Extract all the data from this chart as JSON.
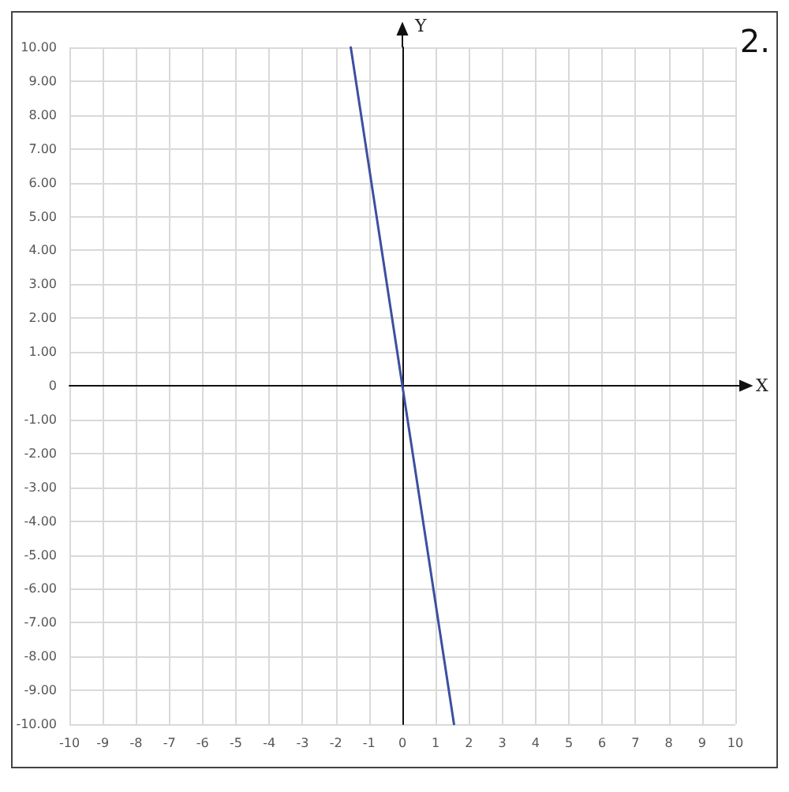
{
  "chart_data": {
    "type": "line",
    "xlabel": "X",
    "ylabel": "Y",
    "annotations": [
      "2."
    ],
    "x": [
      -1.55,
      1.55
    ],
    "series": [
      {
        "color": "#3d4f9f",
        "values": [
          10,
          -10
        ]
      }
    ],
    "xlim": [
      -10,
      10
    ],
    "ylim": [
      -10,
      10
    ],
    "xticks": [
      -10,
      -9,
      -8,
      -7,
      -6,
      -5,
      -4,
      -3,
      -2,
      -1,
      0,
      1,
      2,
      3,
      4,
      5,
      6,
      7,
      8,
      9,
      10
    ],
    "yticks": [
      {
        "value": -10,
        "label": "-10.00"
      },
      {
        "value": -9,
        "label": "-9.00"
      },
      {
        "value": -8,
        "label": "-8.00"
      },
      {
        "value": -7,
        "label": "-7.00"
      },
      {
        "value": -6,
        "label": "-6.00"
      },
      {
        "value": -5,
        "label": "-5.00"
      },
      {
        "value": -4,
        "label": "-4.00"
      },
      {
        "value": -3,
        "label": "-3.00"
      },
      {
        "value": -2,
        "label": "-2.00"
      },
      {
        "value": -1,
        "label": "-1.00"
      },
      {
        "value": 0,
        "label": "0"
      },
      {
        "value": 1,
        "label": "1.00"
      },
      {
        "value": 2,
        "label": "2.00"
      },
      {
        "value": 3,
        "label": "3.00"
      },
      {
        "value": 4,
        "label": "4.00"
      },
      {
        "value": 5,
        "label": "5.00"
      },
      {
        "value": 6,
        "label": "6.00"
      },
      {
        "value": 7,
        "label": "7.00"
      },
      {
        "value": 8,
        "label": "8.00"
      },
      {
        "value": 9,
        "label": "9.00"
      },
      {
        "value": 10,
        "label": "10.00"
      }
    ],
    "grid": true,
    "marker": "none",
    "line_style": "solid"
  }
}
